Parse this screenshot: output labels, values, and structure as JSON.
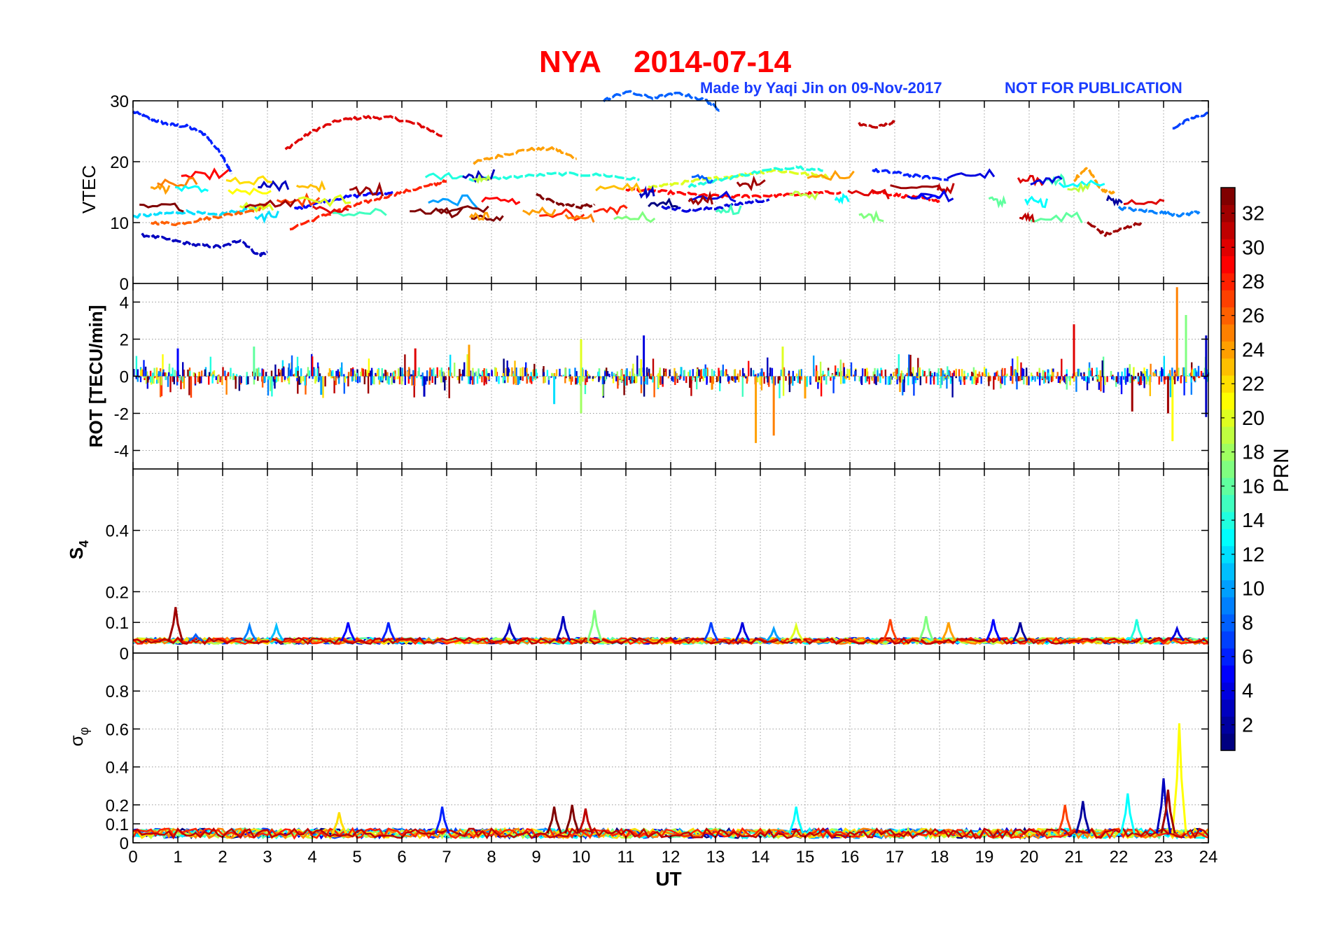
{
  "figure": {
    "title_station": "NYA",
    "title_date": "2014-07-14",
    "credit": "Made by Yaqi Jin on 09-Nov-2017",
    "notice": "NOT FOR PUBLICATION"
  },
  "chart_data": [
    {
      "type": "line",
      "panel": "vtec",
      "ylabel": "VTEC",
      "ylim": [
        0,
        30
      ],
      "yticks": [
        0,
        10,
        20,
        30
      ],
      "xlim": [
        0,
        24
      ],
      "grid": true,
      "series": [
        {
          "prn": 6,
          "x": [
            0.0,
            0.4,
            0.8,
            1.2,
            1.6,
            2.0,
            2.2
          ],
          "y": [
            28.2,
            27.0,
            26.1,
            25.8,
            24.5,
            21.0,
            18.0
          ]
        },
        {
          "prn": 30,
          "x": [
            3.4,
            4.0,
            4.6,
            5.2,
            5.8,
            6.4,
            6.9
          ],
          "y": [
            22.0,
            25.0,
            26.8,
            27.3,
            27.2,
            26.0,
            24.2
          ]
        },
        {
          "prn": 24,
          "x": [
            7.6,
            8.2,
            8.8,
            9.4,
            9.9
          ],
          "y": [
            19.8,
            21.0,
            22.0,
            22.1,
            20.5
          ]
        },
        {
          "prn": 31,
          "x": [
            16.2,
            16.6,
            17.0
          ],
          "y": [
            26.3,
            25.6,
            26.5
          ]
        },
        {
          "prn": 3,
          "x": [
            0.2,
            0.8,
            1.4,
            2.0,
            2.4,
            2.8,
            3.0
          ],
          "y": [
            8.0,
            7.2,
            6.3,
            6.0,
            7.2,
            4.6,
            5.2
          ]
        },
        {
          "prn": 12,
          "x": [
            0.0,
            0.6,
            1.2,
            1.8,
            2.4,
            3.0
          ],
          "y": [
            11.0,
            11.4,
            11.8,
            11.2,
            12.0,
            12.6
          ]
        },
        {
          "prn": 26,
          "x": [
            0.4,
            1.0,
            1.6,
            2.2,
            2.8,
            3.0
          ],
          "y": [
            10.0,
            9.8,
            10.6,
            11.4,
            12.2,
            13.0
          ]
        },
        {
          "prn": 28,
          "x": [
            3.5,
            4.2,
            4.8,
            5.4,
            6.0,
            6.6,
            7.0
          ],
          "y": [
            9.0,
            11.0,
            12.5,
            13.8,
            15.0,
            16.0,
            16.8
          ]
        },
        {
          "prn": 5,
          "x": [
            3.6,
            4.0,
            4.6,
            5.2,
            5.8
          ],
          "y": [
            12.2,
            13.0,
            14.0,
            14.6,
            15.0
          ]
        },
        {
          "prn": 14,
          "x": [
            7.5,
            8.5,
            9.5,
            10.5,
            11.3
          ],
          "y": [
            17.0,
            17.5,
            18.0,
            17.8,
            17.0
          ]
        },
        {
          "prn": 29,
          "x": [
            11.0,
            11.6,
            12.2,
            12.8,
            13.4,
            14.0,
            14.6,
            15.2,
            15.8
          ],
          "y": [
            15.5,
            15.2,
            14.8,
            14.4,
            14.3,
            14.4,
            14.5,
            14.8,
            15.0
          ]
        },
        {
          "prn": 20,
          "x": [
            11.5,
            12.2,
            12.9,
            13.6,
            14.3,
            15.0,
            15.6
          ],
          "y": [
            15.8,
            16.5,
            17.2,
            17.8,
            18.6,
            18.0,
            17.5
          ]
        },
        {
          "prn": 14,
          "x": [
            12.4,
            13.2,
            14.0,
            14.8,
            15.4
          ],
          "y": [
            16.0,
            17.2,
            18.4,
            19.2,
            18.5
          ]
        },
        {
          "prn": 4,
          "x": [
            11.8,
            12.4,
            13.0,
            13.6,
            14.2
          ],
          "y": [
            12.6,
            12.0,
            12.4,
            13.2,
            13.8
          ]
        },
        {
          "prn": 33,
          "x": [
            9.0,
            9.5,
            10.0,
            10.3
          ],
          "y": [
            14.5,
            13.0,
            12.6,
            13.0
          ]
        },
        {
          "prn": 29,
          "x": [
            16.5,
            17.0,
            17.5,
            18.0
          ],
          "y": [
            15.0,
            14.6,
            14.0,
            13.6
          ]
        },
        {
          "prn": 6,
          "x": [
            16.5,
            17.0,
            17.5,
            18.2
          ],
          "y": [
            18.6,
            18.2,
            17.6,
            17.0
          ]
        },
        {
          "prn": 24,
          "x": [
            21.0,
            21.3,
            21.6,
            21.9
          ],
          "y": [
            17.0,
            19.0,
            15.5,
            14.8
          ]
        },
        {
          "prn": 32,
          "x": [
            21.3,
            21.7,
            22.1,
            22.5
          ],
          "y": [
            10.0,
            8.0,
            9.0,
            10.0
          ]
        },
        {
          "prn": 9,
          "x": [
            22.0,
            22.5,
            23.0,
            23.4,
            23.8
          ],
          "y": [
            12.4,
            12.0,
            11.6,
            11.2,
            11.8
          ]
        },
        {
          "prn": 7,
          "x": [
            23.2,
            23.6,
            24.0
          ],
          "y": [
            25.5,
            27.0,
            28.0
          ]
        },
        {
          "prn": 8,
          "x": [
            10.5,
            11.0,
            11.6,
            12.2,
            12.8,
            13.1
          ],
          "y": [
            30.0,
            31.5,
            30.5,
            31.2,
            30.0,
            28.5
          ]
        }
      ]
    },
    {
      "type": "line",
      "panel": "rot",
      "ylabel": "ROT [TECU/min]",
      "ylim": [
        -5,
        5
      ],
      "yticks": [
        -4,
        -2,
        0,
        2,
        4
      ],
      "xlim": [
        0,
        24
      ],
      "grid": true,
      "spikes": [
        {
          "x": 1.0,
          "y": 1.5,
          "prn": 5
        },
        {
          "x": 2.7,
          "y": 1.6,
          "prn": 16
        },
        {
          "x": 4.2,
          "y": -1.0,
          "prn": 10
        },
        {
          "x": 6.3,
          "y": 1.5,
          "prn": 30
        },
        {
          "x": 6.5,
          "y": -1.1,
          "prn": 3
        },
        {
          "x": 7.5,
          "y": 1.7,
          "prn": 24
        },
        {
          "x": 9.4,
          "y": -1.5,
          "prn": 12
        },
        {
          "x": 10.0,
          "y": 2.0,
          "prn": 20
        },
        {
          "x": 10.0,
          "y": -2.0,
          "prn": 18
        },
        {
          "x": 11.4,
          "y": 2.2,
          "prn": 4
        },
        {
          "x": 13.9,
          "y": -3.6,
          "prn": 24
        },
        {
          "x": 14.3,
          "y": -3.2,
          "prn": 25
        },
        {
          "x": 14.5,
          "y": 1.6,
          "prn": 20
        },
        {
          "x": 15.0,
          "y": -1.2,
          "prn": 24
        },
        {
          "x": 21.0,
          "y": 2.8,
          "prn": 30
        },
        {
          "x": 22.3,
          "y": -1.9,
          "prn": 32
        },
        {
          "x": 23.1,
          "y": -2.0,
          "prn": 32
        },
        {
          "x": 23.3,
          "y": 4.8,
          "prn": 25
        },
        {
          "x": 23.5,
          "y": 3.3,
          "prn": 17
        },
        {
          "x": 23.2,
          "y": -3.5,
          "prn": 21
        },
        {
          "x": 23.95,
          "y": 2.2,
          "prn": 3
        },
        {
          "x": 23.95,
          "y": -2.2,
          "prn": 3
        }
      ]
    },
    {
      "type": "line",
      "panel": "s4",
      "ylabel": "S",
      "ylabel_sub": "4",
      "ylim": [
        0,
        0.6
      ],
      "yticks": [
        0,
        0.1,
        0.2,
        0.4
      ],
      "ytick_labels": [
        "0",
        "0.1",
        "0.2",
        "0.4"
      ],
      "xlim": [
        0,
        24
      ],
      "grid": true,
      "peaks": [
        {
          "x": 0.95,
          "y": 0.15,
          "prn": 32
        },
        {
          "x": 1.4,
          "y": 0.06,
          "prn": 8
        },
        {
          "x": 2.6,
          "y": 0.09,
          "prn": 9
        },
        {
          "x": 3.2,
          "y": 0.09,
          "prn": 11
        },
        {
          "x": 4.8,
          "y": 0.1,
          "prn": 5
        },
        {
          "x": 5.7,
          "y": 0.1,
          "prn": 6
        },
        {
          "x": 8.4,
          "y": 0.09,
          "prn": 3
        },
        {
          "x": 9.6,
          "y": 0.12,
          "prn": 3
        },
        {
          "x": 10.3,
          "y": 0.14,
          "prn": 17
        },
        {
          "x": 12.9,
          "y": 0.1,
          "prn": 7
        },
        {
          "x": 13.6,
          "y": 0.1,
          "prn": 4
        },
        {
          "x": 14.3,
          "y": 0.08,
          "prn": 10
        },
        {
          "x": 14.8,
          "y": 0.09,
          "prn": 20
        },
        {
          "x": 16.9,
          "y": 0.11,
          "prn": 27
        },
        {
          "x": 17.7,
          "y": 0.12,
          "prn": 17
        },
        {
          "x": 18.2,
          "y": 0.1,
          "prn": 24
        },
        {
          "x": 19.2,
          "y": 0.11,
          "prn": 5
        },
        {
          "x": 19.8,
          "y": 0.1,
          "prn": 2
        },
        {
          "x": 22.4,
          "y": 0.11,
          "prn": 14
        },
        {
          "x": 23.3,
          "y": 0.08,
          "prn": 4
        }
      ]
    },
    {
      "type": "line",
      "panel": "sigma_phi",
      "ylabel": "σ",
      "ylabel_sub": "φ",
      "ylim": [
        0,
        1
      ],
      "yticks": [
        0,
        0.1,
        0.2,
        0.4,
        0.6,
        0.8
      ],
      "ytick_labels": [
        "0",
        "0.1",
        "0.2",
        "0.4",
        "0.6",
        "0.8"
      ],
      "xlim": [
        0,
        24
      ],
      "grid": true,
      "peaks": [
        {
          "x": 9.4,
          "y": 0.19,
          "prn": 33
        },
        {
          "x": 9.8,
          "y": 0.2,
          "prn": 33
        },
        {
          "x": 10.1,
          "y": 0.18,
          "prn": 31
        },
        {
          "x": 6.9,
          "y": 0.19,
          "prn": 6
        },
        {
          "x": 14.8,
          "y": 0.19,
          "prn": 13
        },
        {
          "x": 20.8,
          "y": 0.2,
          "prn": 27
        },
        {
          "x": 21.2,
          "y": 0.22,
          "prn": 2
        },
        {
          "x": 22.2,
          "y": 0.26,
          "prn": 13
        },
        {
          "x": 23.0,
          "y": 0.34,
          "prn": 3
        },
        {
          "x": 23.35,
          "y": 0.63,
          "prn": 21
        },
        {
          "x": 23.1,
          "y": 0.28,
          "prn": 32
        },
        {
          "x": 4.6,
          "y": 0.16,
          "prn": 22
        }
      ]
    }
  ],
  "x_axis": {
    "label": "UT",
    "ticks": [
      "0",
      "1",
      "2",
      "3",
      "4",
      "5",
      "6",
      "7",
      "8",
      "9",
      "10",
      "11",
      "12",
      "13",
      "14",
      "15",
      "16",
      "17",
      "18",
      "19",
      "20",
      "21",
      "22",
      "23",
      "24"
    ]
  },
  "colorbar": {
    "label": "PRN",
    "min": 1,
    "max": 33,
    "ticks": [
      "2",
      "4",
      "6",
      "8",
      "10",
      "12",
      "14",
      "16",
      "18",
      "20",
      "22",
      "24",
      "26",
      "28",
      "30",
      "32"
    ],
    "colormap": "jet"
  },
  "colors": {
    "title": "#ff0000",
    "credit": "#1a3cff"
  }
}
